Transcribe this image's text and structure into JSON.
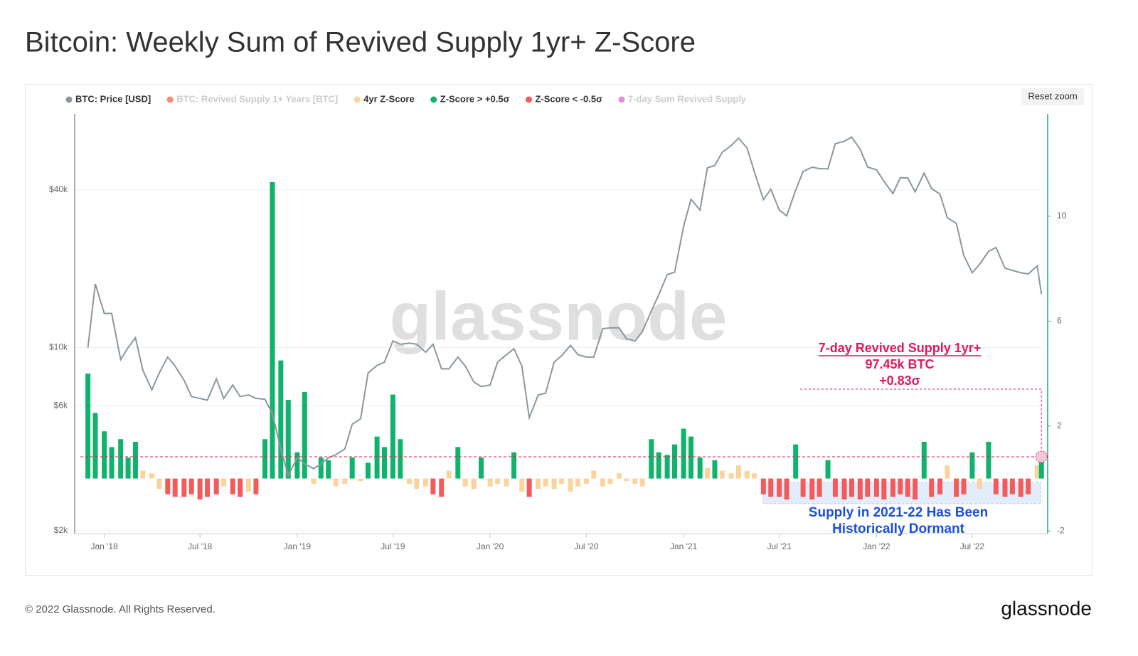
{
  "title": "Bitcoin: Weekly Sum of Revived Supply 1yr+ Z-Score",
  "footer": "© 2022 Glassnode. All Rights Reserved.",
  "logo": "glassnode",
  "watermark": "glassnode",
  "reset_button": "Reset zoom",
  "chart_data": {
    "type": "combo",
    "legend": [
      {
        "name": "BTC: Price [USD]",
        "color": "#8a979f",
        "enabled": true
      },
      {
        "name": "BTC: Revived Supply 1+ Years [BTC]",
        "color": "#f03b20",
        "enabled": false
      },
      {
        "name": "4yr Z-Score",
        "color": "#f9d49b",
        "enabled": true
      },
      {
        "name": "Z-Score > +0.5σ",
        "color": "#10b36b",
        "enabled": true
      },
      {
        "name": "Z-Score < -0.5σ",
        "color": "#f25b5b",
        "enabled": true
      },
      {
        "name": "7-day Sum Revived Supply",
        "color": "#d63fc0",
        "enabled": false
      }
    ],
    "xlim": [
      "2017-11-06",
      "2022-11-10"
    ],
    "xticks": [
      {
        "value": "2018-01-01",
        "label": "Jan '18"
      },
      {
        "value": "2018-07-01",
        "label": "Jul '18"
      },
      {
        "value": "2019-01-01",
        "label": "Jan '19"
      },
      {
        "value": "2019-07-01",
        "label": "Jul '19"
      },
      {
        "value": "2020-01-01",
        "label": "Jan '20"
      },
      {
        "value": "2020-07-01",
        "label": "Jul '20"
      },
      {
        "value": "2021-01-01",
        "label": "Jan '21"
      },
      {
        "value": "2021-07-01",
        "label": "Jul '21"
      },
      {
        "value": "2022-01-01",
        "label": "Jan '22"
      },
      {
        "value": "2022-07-01",
        "label": "Jul '22"
      }
    ],
    "ylim": [
      1950,
      78000
    ],
    "log_y": true,
    "yticks": [
      {
        "value": 2000,
        "label": "$2k"
      },
      {
        "value": 6000,
        "label": "$6k"
      },
      {
        "value": 10000,
        "label": "$10k"
      },
      {
        "value": 40000,
        "label": "$40k"
      }
    ],
    "y2lim": [
      -2.1,
      13.9
    ],
    "y2ticks": [
      -2,
      2,
      6,
      10
    ],
    "grid": true,
    "x": [
      "2017-12-01",
      "2017-12-15",
      "2018-01-01",
      "2018-01-15",
      "2018-02-01",
      "2018-02-15",
      "2018-03-01",
      "2018-03-15",
      "2018-04-01",
      "2018-04-15",
      "2018-05-01",
      "2018-05-15",
      "2018-06-01",
      "2018-06-15",
      "2018-07-01",
      "2018-07-15",
      "2018-08-01",
      "2018-08-15",
      "2018-09-01",
      "2018-09-15",
      "2018-10-01",
      "2018-10-15",
      "2018-11-01",
      "2018-11-15",
      "2018-12-01",
      "2018-12-15",
      "2019-01-01",
      "2019-01-15",
      "2019-02-01",
      "2019-02-15",
      "2019-03-01",
      "2019-03-15",
      "2019-04-01",
      "2019-04-15",
      "2019-05-01",
      "2019-05-15",
      "2019-06-01",
      "2019-06-15",
      "2019-07-01",
      "2019-07-15",
      "2019-08-01",
      "2019-08-15",
      "2019-09-01",
      "2019-09-15",
      "2019-10-01",
      "2019-10-15",
      "2019-11-01",
      "2019-11-15",
      "2019-12-01",
      "2019-12-15",
      "2020-01-01",
      "2020-01-15",
      "2020-02-01",
      "2020-02-15",
      "2020-03-01",
      "2020-03-15",
      "2020-04-01",
      "2020-04-15",
      "2020-05-01",
      "2020-05-15",
      "2020-06-01",
      "2020-06-15",
      "2020-07-01",
      "2020-07-15",
      "2020-08-01",
      "2020-08-15",
      "2020-09-01",
      "2020-09-15",
      "2020-10-01",
      "2020-10-15",
      "2020-11-01",
      "2020-11-15",
      "2020-12-01",
      "2020-12-15",
      "2021-01-01",
      "2021-01-15",
      "2021-02-01",
      "2021-02-15",
      "2021-03-01",
      "2021-03-15",
      "2021-04-01",
      "2021-04-15",
      "2021-05-01",
      "2021-05-15",
      "2021-06-01",
      "2021-06-15",
      "2021-07-01",
      "2021-07-15",
      "2021-08-01",
      "2021-08-15",
      "2021-09-01",
      "2021-09-15",
      "2021-10-01",
      "2021-10-15",
      "2021-11-01",
      "2021-11-15",
      "2021-12-01",
      "2021-12-15",
      "2022-01-01",
      "2022-01-15",
      "2022-02-01",
      "2022-02-15",
      "2022-03-01",
      "2022-03-15",
      "2022-04-01",
      "2022-04-15",
      "2022-05-01",
      "2022-05-15",
      "2022-06-01",
      "2022-06-15",
      "2022-07-01",
      "2022-07-15",
      "2022-08-01",
      "2022-08-15",
      "2022-09-01",
      "2022-09-15",
      "2022-10-01",
      "2022-10-15",
      "2022-11-01",
      "2022-11-09"
    ],
    "series": [
      {
        "type": "line",
        "color": "#8a979f",
        "values": [
          10000,
          17500,
          13500,
          13500,
          9000,
          10000,
          10900,
          8200,
          6900,
          8000,
          9200,
          8500,
          7500,
          6500,
          6400,
          6300,
          7600,
          6400,
          7200,
          6500,
          6600,
          6400,
          6350,
          5600,
          4100,
          3250,
          3800,
          3600,
          3450,
          3600,
          3800,
          3900,
          4100,
          5100,
          5350,
          8000,
          8550,
          8800,
          10600,
          10300,
          10400,
          10300,
          9600,
          10300,
          8300,
          8300,
          9200,
          8500,
          7400,
          7100,
          7200,
          8800,
          9400,
          9900,
          8500,
          5400,
          6600,
          6700,
          8800,
          9300,
          10200,
          9400,
          9200,
          9200,
          11800,
          11900,
          11900,
          10800,
          10600,
          11500,
          13800,
          15900,
          19000,
          19400,
          29000,
          36800,
          33500,
          48500,
          49600,
          55600,
          59000,
          63000,
          57800,
          46800,
          36700,
          40200,
          33500,
          31800,
          39900,
          47000,
          48800,
          48200,
          48100,
          60000,
          61300,
          63600,
          57200,
          48900,
          47700,
          43100,
          38700,
          44500,
          44400,
          39300,
          46300,
          40500,
          38500,
          31300,
          29800,
          22500,
          19300,
          20800,
          23300,
          24100,
          20100,
          19700,
          19300,
          19100,
          20500,
          16000
        ]
      },
      {
        "type": "bar",
        "axis": "y2",
        "color": "#f9d49b",
        "above_color": "#10b36b",
        "below_color": "#f25b5b",
        "upper_threshold": 0.5,
        "lower_threshold": -0.5,
        "values": [
          4.0,
          2.5,
          1.8,
          1.2,
          1.5,
          0.8,
          1.4,
          0.3,
          0.2,
          -0.4,
          -0.6,
          -0.7,
          -0.7,
          -0.6,
          -0.8,
          -0.7,
          -0.6,
          -0.3,
          -0.6,
          -0.7,
          -0.5,
          -0.6,
          1.5,
          11.3,
          4.5,
          3.0,
          1.0,
          3.3,
          -0.2,
          0.8,
          0.7,
          -0.3,
          -0.2,
          0.8,
          -0.1,
          0.6,
          1.6,
          1.2,
          3.2,
          1.5,
          -0.2,
          -0.4,
          -0.3,
          -0.6,
          -0.7,
          0.3,
          1.2,
          -0.3,
          -0.4,
          0.8,
          -0.3,
          -0.2,
          -0.3,
          1.0,
          -0.5,
          -0.7,
          -0.4,
          -0.3,
          -0.4,
          -0.2,
          -0.5,
          -0.3,
          -0.2,
          0.3,
          -0.3,
          -0.2,
          0.2,
          -0.1,
          -0.2,
          -0.3,
          1.5,
          1.0,
          0.9,
          1.3,
          1.9,
          1.6,
          0.8,
          0.4,
          0.7,
          0.3,
          0.2,
          0.5,
          0.3,
          0.2,
          -0.6,
          -0.7,
          -0.7,
          -0.8,
          1.3,
          -0.7,
          -0.8,
          -0.7,
          0.7,
          -0.7,
          -0.8,
          -0.7,
          -0.8,
          -0.7,
          -0.7,
          -0.8,
          -0.7,
          -0.6,
          -0.7,
          -0.8,
          1.4,
          -0.7,
          -0.6,
          0.5,
          -0.7,
          -0.6,
          1.0,
          -0.4,
          1.4,
          -0.6,
          -0.7,
          -0.6,
          -0.7,
          -0.6,
          0.5,
          0.83
        ]
      }
    ],
    "annotations": {
      "callout": [
        "7-day Revived Supply 1yr+",
        "97.45k BTC",
        "+0.83σ"
      ],
      "note": [
        "Supply in 2021-22 Has Been",
        "Historically Dormant"
      ]
    }
  }
}
